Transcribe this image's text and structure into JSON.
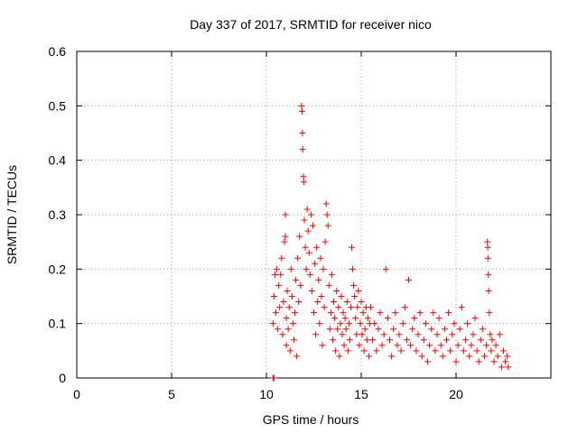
{
  "chart_data": {
    "type": "scatter",
    "title": "Day 337 of 2017, SRMTID for receiver nico",
    "xlabel": "GPS time / hours",
    "ylabel": "SRMTID / TECUs",
    "xlim": [
      0,
      25
    ],
    "ylim": [
      0,
      0.6
    ],
    "xticks": [
      0,
      5,
      10,
      15,
      20
    ],
    "xtick_labels": [
      "0",
      "5",
      "10",
      "15",
      "20"
    ],
    "yticks": [
      0,
      0.1,
      0.2,
      0.3,
      0.4,
      0.5,
      0.6
    ],
    "ytick_labels": [
      "0",
      "0.1",
      "0.2",
      "0.3",
      "0.4",
      "0.5",
      "0.6"
    ],
    "grid": true,
    "marker": "+",
    "marker_color": "#ff0000",
    "series": [
      {
        "name": "SRMTID",
        "points": [
          [
            10.35,
            0.0
          ],
          [
            10.4,
            0.0
          ],
          [
            10.35,
            0.1
          ],
          [
            10.4,
            0.15
          ],
          [
            10.45,
            0.19
          ],
          [
            10.5,
            0.12
          ],
          [
            10.55,
            0.2
          ],
          [
            10.6,
            0.09
          ],
          [
            10.65,
            0.17
          ],
          [
            10.7,
            0.13
          ],
          [
            10.75,
            0.19
          ],
          [
            10.8,
            0.22
          ],
          [
            10.85,
            0.08
          ],
          [
            10.9,
            0.14
          ],
          [
            10.95,
            0.25
          ],
          [
            11.0,
            0.3
          ],
          [
            11.0,
            0.26
          ],
          [
            11.05,
            0.11
          ],
          [
            11.05,
            0.06
          ],
          [
            11.1,
            0.16
          ],
          [
            11.15,
            0.09
          ],
          [
            11.2,
            0.13
          ],
          [
            11.25,
            0.05
          ],
          [
            11.3,
            0.2
          ],
          [
            11.35,
            0.15
          ],
          [
            11.4,
            0.1
          ],
          [
            11.45,
            0.07
          ],
          [
            11.5,
            0.12
          ],
          [
            11.55,
            0.18
          ],
          [
            11.6,
            0.04
          ],
          [
            11.65,
            0.22
          ],
          [
            11.7,
            0.14
          ],
          [
            11.75,
            0.26
          ],
          [
            11.8,
            0.17
          ],
          [
            11.85,
            0.5
          ],
          [
            11.88,
            0.49
          ],
          [
            11.9,
            0.45
          ],
          [
            11.92,
            0.42
          ],
          [
            11.95,
            0.37
          ],
          [
            11.97,
            0.36
          ],
          [
            12.0,
            0.29
          ],
          [
            12.05,
            0.24
          ],
          [
            12.1,
            0.2
          ],
          [
            12.15,
            0.31
          ],
          [
            12.2,
            0.27
          ],
          [
            12.25,
            0.23
          ],
          [
            12.3,
            0.19
          ],
          [
            12.35,
            0.3
          ],
          [
            12.4,
            0.16
          ],
          [
            12.45,
            0.28
          ],
          [
            12.5,
            0.12
          ],
          [
            12.55,
            0.21
          ],
          [
            12.6,
            0.08
          ],
          [
            12.65,
            0.24
          ],
          [
            12.7,
            0.14
          ],
          [
            12.75,
            0.18
          ],
          [
            12.8,
            0.1
          ],
          [
            12.85,
            0.22
          ],
          [
            12.9,
            0.15
          ],
          [
            12.95,
            0.06
          ],
          [
            13.0,
            0.2
          ],
          [
            13.05,
            0.13
          ],
          [
            13.1,
            0.25
          ],
          [
            13.15,
            0.32
          ],
          [
            13.2,
            0.3
          ],
          [
            13.25,
            0.28
          ],
          [
            13.3,
            0.17
          ],
          [
            13.35,
            0.09
          ],
          [
            13.4,
            0.12
          ],
          [
            13.45,
            0.19
          ],
          [
            13.5,
            0.07
          ],
          [
            13.55,
            0.14
          ],
          [
            13.6,
            0.11
          ],
          [
            13.65,
            0.05
          ],
          [
            13.7,
            0.16
          ],
          [
            13.75,
            0.09
          ],
          [
            13.8,
            0.13
          ],
          [
            13.85,
            0.04
          ],
          [
            13.9,
            0.1
          ],
          [
            13.95,
            0.15
          ],
          [
            14.0,
            0.08
          ],
          [
            14.05,
            0.12
          ],
          [
            14.1,
            0.06
          ],
          [
            14.15,
            0.11
          ],
          [
            14.2,
            0.09
          ],
          [
            14.25,
            0.14
          ],
          [
            14.3,
            0.05
          ],
          [
            14.35,
            0.1
          ],
          [
            14.4,
            0.07
          ],
          [
            14.45,
            0.13
          ],
          [
            14.5,
            0.24
          ],
          [
            14.55,
            0.2
          ],
          [
            14.6,
            0.17
          ],
          [
            14.65,
            0.15
          ],
          [
            14.7,
            0.11
          ],
          [
            14.75,
            0.08
          ],
          [
            14.8,
            0.13
          ],
          [
            14.85,
            0.16
          ],
          [
            14.9,
            0.06
          ],
          [
            14.95,
            0.1
          ],
          [
            15.0,
            0.14
          ],
          [
            15.05,
            0.08
          ],
          [
            15.1,
            0.12
          ],
          [
            15.15,
            0.05
          ],
          [
            15.2,
            0.09
          ],
          [
            15.25,
            0.13
          ],
          [
            15.3,
            0.07
          ],
          [
            15.35,
            0.11
          ],
          [
            15.4,
            0.04
          ],
          [
            15.45,
            0.1
          ],
          [
            15.5,
            0.13
          ],
          [
            15.6,
            0.07
          ],
          [
            15.7,
            0.1
          ],
          [
            15.8,
            0.05
          ],
          [
            15.9,
            0.09
          ],
          [
            16.0,
            0.12
          ],
          [
            16.1,
            0.06
          ],
          [
            16.2,
            0.08
          ],
          [
            16.3,
            0.2
          ],
          [
            16.4,
            0.11
          ],
          [
            16.5,
            0.07
          ],
          [
            16.6,
            0.04
          ],
          [
            16.7,
            0.09
          ],
          [
            16.8,
            0.12
          ],
          [
            16.9,
            0.06
          ],
          [
            17.0,
            0.08
          ],
          [
            17.1,
            0.05
          ],
          [
            17.2,
            0.1
          ],
          [
            17.3,
            0.13
          ],
          [
            17.4,
            0.07
          ],
          [
            17.5,
            0.18
          ],
          [
            17.6,
            0.06
          ],
          [
            17.7,
            0.09
          ],
          [
            17.8,
            0.11
          ],
          [
            17.9,
            0.05
          ],
          [
            18.0,
            0.08
          ],
          [
            18.1,
            0.12
          ],
          [
            18.2,
            0.04
          ],
          [
            18.3,
            0.07
          ],
          [
            18.4,
            0.1
          ],
          [
            18.5,
            0.03
          ],
          [
            18.6,
            0.06
          ],
          [
            18.7,
            0.09
          ],
          [
            18.8,
            0.12
          ],
          [
            18.9,
            0.05
          ],
          [
            19.0,
            0.08
          ],
          [
            19.1,
            0.11
          ],
          [
            19.2,
            0.06
          ],
          [
            19.3,
            0.04
          ],
          [
            19.4,
            0.09
          ],
          [
            19.5,
            0.07
          ],
          [
            19.6,
            0.12
          ],
          [
            19.7,
            0.05
          ],
          [
            19.8,
            0.08
          ],
          [
            19.9,
            0.1
          ],
          [
            20.0,
            0.03
          ],
          [
            20.1,
            0.06
          ],
          [
            20.2,
            0.09
          ],
          [
            20.3,
            0.13
          ],
          [
            20.4,
            0.05
          ],
          [
            20.5,
            0.07
          ],
          [
            20.6,
            0.1
          ],
          [
            20.7,
            0.04
          ],
          [
            20.8,
            0.06
          ],
          [
            20.9,
            0.08
          ],
          [
            21.0,
            0.11
          ],
          [
            21.1,
            0.05
          ],
          [
            21.2,
            0.03
          ],
          [
            21.3,
            0.07
          ],
          [
            21.4,
            0.09
          ],
          [
            21.5,
            0.04
          ],
          [
            21.6,
            0.06
          ],
          [
            21.65,
            0.25
          ],
          [
            21.67,
            0.24
          ],
          [
            21.68,
            0.22
          ],
          [
            21.7,
            0.19
          ],
          [
            21.72,
            0.16
          ],
          [
            21.75,
            0.12
          ],
          [
            21.8,
            0.08
          ],
          [
            21.85,
            0.05
          ],
          [
            21.9,
            0.07
          ],
          [
            22.0,
            0.03
          ],
          [
            22.1,
            0.06
          ],
          [
            22.2,
            0.04
          ],
          [
            22.3,
            0.08
          ],
          [
            22.4,
            0.02
          ],
          [
            22.5,
            0.05
          ],
          [
            22.6,
            0.03
          ],
          [
            22.7,
            0.04
          ],
          [
            22.75,
            0.02
          ]
        ]
      }
    ]
  }
}
